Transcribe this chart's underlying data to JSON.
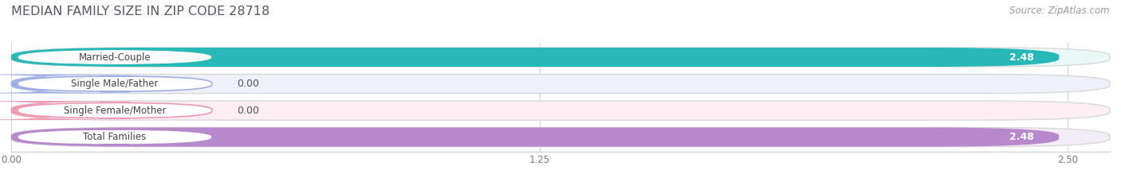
{
  "title": "MEDIAN FAMILY SIZE IN ZIP CODE 28718",
  "source": "Source: ZipAtlas.com",
  "categories": [
    "Married-Couple",
    "Single Male/Father",
    "Single Female/Mother",
    "Total Families"
  ],
  "values": [
    2.48,
    0.0,
    0.0,
    2.48
  ],
  "bar_colors": [
    "#29b8b8",
    "#9daee8",
    "#f099b0",
    "#b888cc"
  ],
  "bar_bg_colors": [
    "#eaf8f8",
    "#eef1fa",
    "#fceef3",
    "#f3edf8"
  ],
  "xlim_max": 2.6,
  "xticks": [
    0.0,
    1.25,
    2.5
  ],
  "xtick_labels": [
    "0.00",
    "1.25",
    "2.50"
  ],
  "value_labels": [
    "2.48",
    "0.00",
    "0.00",
    "2.48"
  ],
  "figsize": [
    14.06,
    2.33
  ],
  "dpi": 100,
  "bg_color": "#ffffff",
  "title_color": "#555566",
  "source_color": "#999999",
  "title_fontsize": 11.5,
  "source_fontsize": 8.5,
  "bar_label_fontsize": 8.5,
  "value_fontsize": 9.0
}
